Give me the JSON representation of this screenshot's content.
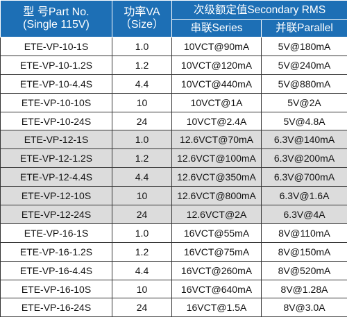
{
  "header": {
    "part_line1": "型 号Part No.",
    "part_line2": "(Single 115V)",
    "va_line1": "功率VA",
    "va_line2": "（Size）",
    "secondary": "次级额定值Secondary RMS",
    "series": "串联Series",
    "parallel": "并联Parallel"
  },
  "colors": {
    "header_bg": "#1d6fb5",
    "group_gray_bg": "#dcdcdc"
  },
  "rows": [
    {
      "part": "ETE-VP-10-1S",
      "va": "1.0",
      "series": "10VCT@90mA",
      "parallel": "5V@180mA"
    },
    {
      "part": "ETE-VP-10-1.2S",
      "va": "1.2",
      "series": "10VCT@120mA",
      "parallel": "5V@240mA"
    },
    {
      "part": "ETE-VP-10-4.4S",
      "va": "4.4",
      "series": "10VCT@440mA",
      "parallel": "5V@880mA"
    },
    {
      "part": "ETE-VP-10-10S",
      "va": "10",
      "series": "10VCT@1A",
      "parallel": "5V@2A"
    },
    {
      "part": "ETE-VP-10-24S",
      "va": "24",
      "series": "10VCT@2.4A",
      "parallel": "5V@4.8A"
    },
    {
      "part": "ETE-VP-12-1S",
      "va": "1.0",
      "series": "12.6VCT@70mA",
      "parallel": "6.3V@140mA"
    },
    {
      "part": "ETE-VP-12-1.2S",
      "va": "1.2",
      "series": "12.6VCT@100mA",
      "parallel": "6.3V@200mA"
    },
    {
      "part": "ETE-VP-12-4.4S",
      "va": "4.4",
      "series": "12.6VCT@350mA",
      "parallel": "6.3V@700mA"
    },
    {
      "part": "ETE-VP-12-10S",
      "va": "10",
      "series": "12.6VCT@800mA",
      "parallel": "6.3V@1.6A"
    },
    {
      "part": "ETE-VP-12-24S",
      "va": "24",
      "series": "12.6VCT@2A",
      "parallel": "6.3V@4A"
    },
    {
      "part": "ETE-VP-16-1S",
      "va": "1.0",
      "series": "16VCT@55mA",
      "parallel": "8V@110mA"
    },
    {
      "part": "ETE-VP-16-1.2S",
      "va": "1.2",
      "series": "16VCT@75mA",
      "parallel": "8V@150mA"
    },
    {
      "part": "ETE-VP-16-4.4S",
      "va": "4.4",
      "series": "16VCT@260mA",
      "parallel": "8V@520mA"
    },
    {
      "part": "ETE-VP-16-10S",
      "va": "10",
      "series": "16VCT@640mA",
      "parallel": "8V@1.28A"
    },
    {
      "part": "ETE-VP-16-24S",
      "va": "24",
      "series": "16VCT@1.5A",
      "parallel": "8V@3.0A"
    }
  ]
}
